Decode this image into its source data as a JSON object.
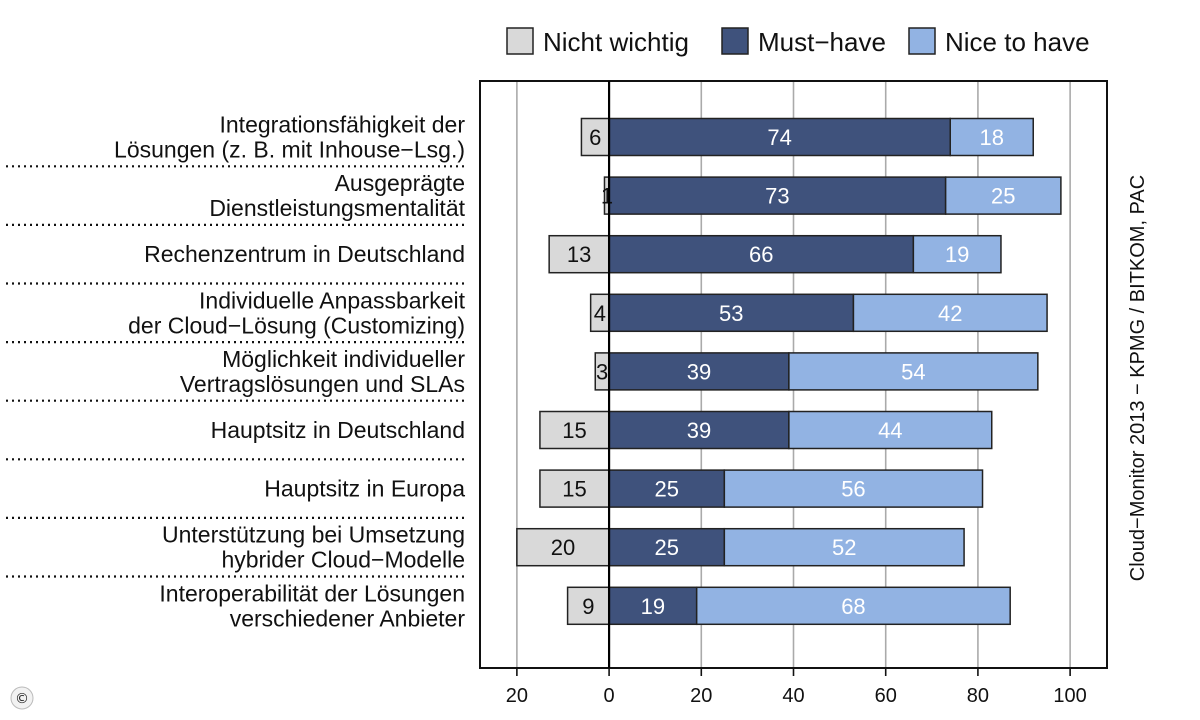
{
  "chart_data": {
    "type": "bar",
    "orientation": "horizontal",
    "stacked": true,
    "diverging": true,
    "title": "",
    "categories": [
      [
        "Integrationsfähigkeit der",
        "Lösungen (z. B. mit Inhouse−Lsg.)"
      ],
      [
        "Ausgeprägte",
        "Dienstleistungsmentalität"
      ],
      [
        "Rechenzentrum in Deutschland"
      ],
      [
        "Individuelle Anpassbarkeit",
        "der Cloud−Lösung (Customizing)"
      ],
      [
        "Möglichkeit individueller",
        "Vertragslösungen und SLAs"
      ],
      [
        "Hauptsitz in Deutschland"
      ],
      [
        "Hauptsitz in Europa"
      ],
      [
        "Unterstützung bei Umsetzung",
        "hybrider Cloud−Modelle"
      ],
      [
        "Interoperabilität der Lösungen",
        "verschiedener Anbieter"
      ]
    ],
    "series": [
      {
        "name": "Nicht wichtig",
        "values": [
          6,
          1,
          13,
          4,
          3,
          15,
          15,
          20,
          9
        ],
        "labels": [
          "6",
          "1",
          "13",
          "4",
          "3",
          "15",
          "15",
          "20",
          "9"
        ],
        "color": "#d9d9d9",
        "text_color": "#111111",
        "direction": "negative"
      },
      {
        "name": "Must−have",
        "values": [
          74,
          73,
          66,
          53,
          39,
          39,
          25,
          25,
          19
        ],
        "labels": [
          "74",
          "73",
          "66",
          "53",
          "39",
          "39",
          "25",
          "25",
          "19"
        ],
        "color": "#3f527c",
        "text_color": "#ffffff",
        "direction": "positive"
      },
      {
        "name": "Nice to have",
        "values": [
          18,
          25,
          19,
          42,
          54,
          44,
          56,
          52,
          68
        ],
        "labels": [
          "18",
          "25",
          "19",
          "42",
          "54",
          "44",
          "56",
          "52",
          "68"
        ],
        "color": "#92b3e3",
        "text_color": "#ffffff",
        "direction": "positive"
      }
    ],
    "xlim": [
      -28,
      108
    ],
    "xticks": [
      -20,
      0,
      20,
      40,
      60,
      80,
      100
    ],
    "xtick_labels": [
      "20",
      "0",
      "20",
      "40",
      "60",
      "80",
      "100"
    ],
    "grid": true,
    "legend_position": "top-right",
    "source": "Cloud−Monitor 2013 − KPMG / BITKOM, PAC",
    "copyright_mark": "©"
  }
}
